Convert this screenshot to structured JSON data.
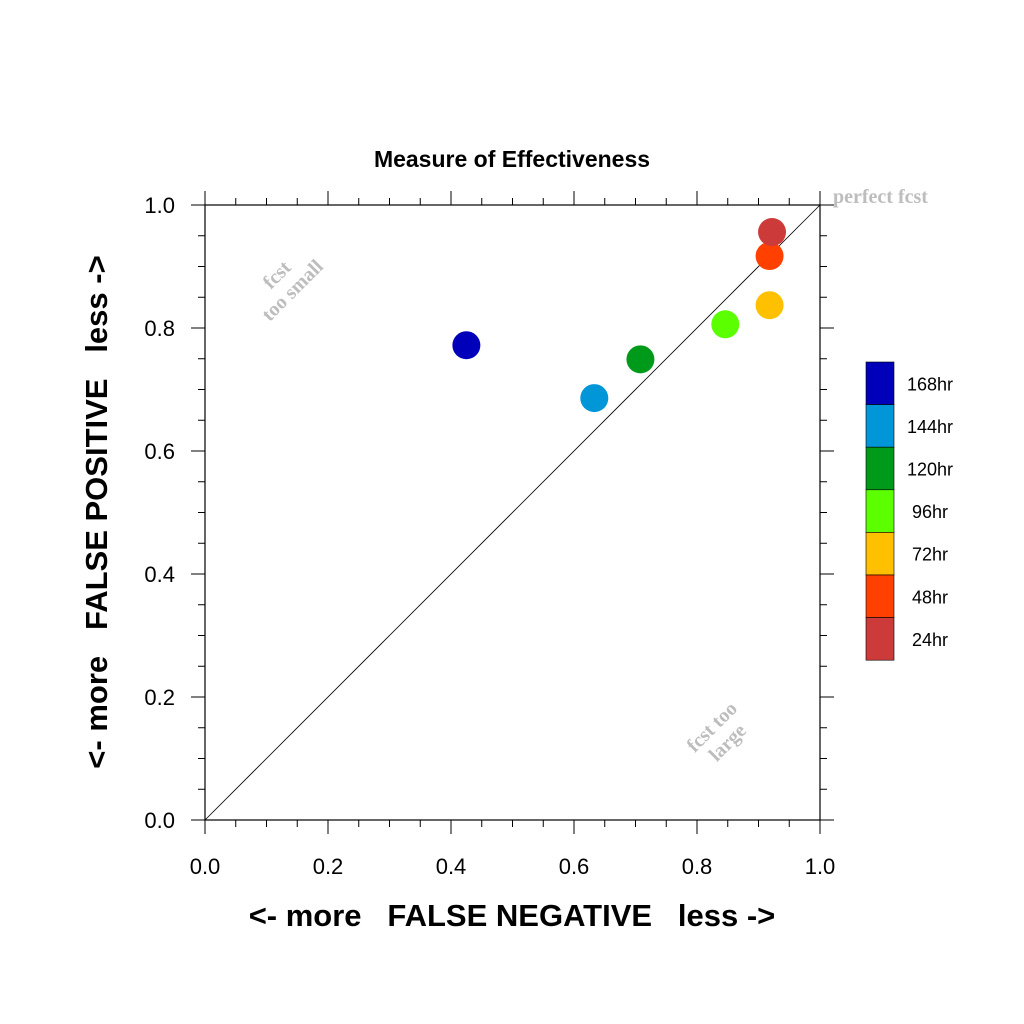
{
  "chart_data": {
    "type": "scatter",
    "title": "Measure of Effectiveness",
    "xlabel": "<- more   FALSE NEGATIVE   less ->",
    "ylabel": "<- more   FALSE POSITIVE   less ->",
    "xlim": [
      0.0,
      1.0
    ],
    "ylim": [
      0.0,
      1.0
    ],
    "x_ticks": [
      "0.0",
      "0.2",
      "0.4",
      "0.6",
      "0.8",
      "1.0"
    ],
    "y_ticks": [
      "0.0",
      "0.2",
      "0.4",
      "0.6",
      "0.8",
      "1.0"
    ],
    "grid": false,
    "diagonal_line": true,
    "legend_position": "right",
    "annotations": {
      "perfect": "perfect fcst",
      "too_small_1": "fcst",
      "too_small_2": "too small",
      "too_large_1": "fcst too",
      "too_large_2": "large"
    },
    "series": [
      {
        "name": "168hr",
        "color": "#0000bb",
        "x": 0.425,
        "y": 0.772
      },
      {
        "name": "144hr",
        "color": "#0096d8",
        "x": 0.633,
        "y": 0.686
      },
      {
        "name": "120hr",
        "color": "#009a1a",
        "x": 0.708,
        "y": 0.749
      },
      {
        "name": "96hr",
        "color": "#5bff00",
        "x": 0.846,
        "y": 0.806
      },
      {
        "name": "72hr",
        "color": "#ffc000",
        "x": 0.918,
        "y": 0.837
      },
      {
        "name": "48hr",
        "color": "#ff4000",
        "x": 0.918,
        "y": 0.917
      },
      {
        "name": "24hr",
        "color": "#cc3a3a",
        "x": 0.922,
        "y": 0.956
      }
    ]
  }
}
